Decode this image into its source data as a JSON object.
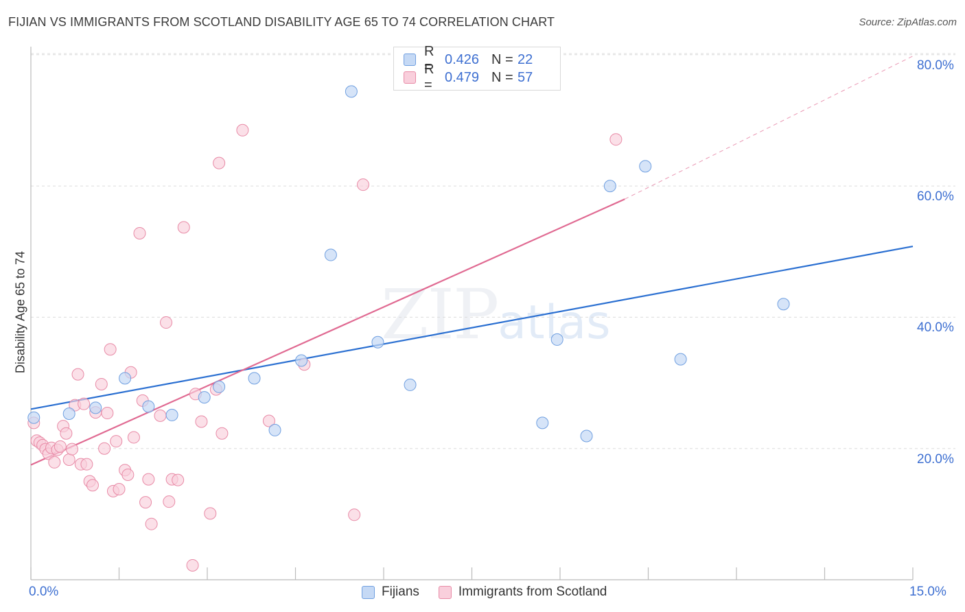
{
  "header": {
    "title": "FIJIAN VS IMMIGRANTS FROM SCOTLAND DISABILITY AGE 65 TO 74 CORRELATION CHART",
    "source": "Source: ZipAtlas.com"
  },
  "legend": {
    "series1": {
      "r_label": "R =",
      "r_value": "0.426",
      "n_label": "N =",
      "n_value": "22"
    },
    "series2": {
      "r_label": "R =",
      "r_value": "0.479",
      "n_label": "N =",
      "n_value": "57"
    }
  },
  "bottom_legend": {
    "series1": "Fijians",
    "series2": "Immigrants from Scotland"
  },
  "axes": {
    "y_title": "Disability Age 65 to 74",
    "y_ticks": [
      "20.0%",
      "40.0%",
      "60.0%",
      "80.0%"
    ],
    "x_min_label": "0.0%",
    "x_max_label": "15.0%"
  },
  "watermark": {
    "zip": "ZIP",
    "atlas": "atlas"
  },
  "colors": {
    "blue": "#6f9fe0",
    "blue_fill": "#c5d9f5",
    "blue_line": "#2a6fd1",
    "pink": "#e88aa6",
    "pink_fill": "#f9cfdc",
    "pink_line": "#e06a92",
    "grid": "#dcdcdc",
    "accent_text": "#3d6fd1"
  },
  "chart_data": {
    "type": "scatter",
    "title": "FIJIAN VS IMMIGRANTS FROM SCOTLAND DISABILITY AGE 65 TO 74 CORRELATION CHART",
    "xlabel": "",
    "ylabel": "Disability Age 65 to 74",
    "xlim": [
      0,
      15
    ],
    "ylim": [
      0,
      82
    ],
    "y_gridlines": [
      20,
      40,
      60,
      80
    ],
    "series": [
      {
        "name": "Fijians",
        "r": 0.426,
        "n": 22,
        "trend": {
          "x": [
            0,
            15
          ],
          "y": [
            26.0,
            50.8
          ]
        },
        "points": [
          [
            0.05,
            24.7
          ],
          [
            0.65,
            25.3
          ],
          [
            1.1,
            26.2
          ],
          [
            1.6,
            30.7
          ],
          [
            2.0,
            26.4
          ],
          [
            2.4,
            25.1
          ],
          [
            2.95,
            27.8
          ],
          [
            3.2,
            29.4
          ],
          [
            3.8,
            30.7
          ],
          [
            4.15,
            22.8
          ],
          [
            4.6,
            33.4
          ],
          [
            5.1,
            49.5
          ],
          [
            5.45,
            74.4
          ],
          [
            5.9,
            36.2
          ],
          [
            6.45,
            29.7
          ],
          [
            8.7,
            23.9
          ],
          [
            8.95,
            36.6
          ],
          [
            9.45,
            21.9
          ],
          [
            9.85,
            60.0
          ],
          [
            10.45,
            63.0
          ],
          [
            11.05,
            33.6
          ],
          [
            12.8,
            42.0
          ]
        ]
      },
      {
        "name": "Immigrants from Scotland",
        "r": 0.479,
        "n": 57,
        "trend": {
          "x": [
            0,
            10.1
          ],
          "y": [
            17.5,
            58.0
          ],
          "dashed_extension": {
            "x": [
              10.1,
              15
            ],
            "y": [
              58.0,
              79.8
            ]
          }
        },
        "points": [
          [
            0.05,
            23.9
          ],
          [
            0.1,
            21.2
          ],
          [
            0.15,
            20.9
          ],
          [
            0.2,
            20.5
          ],
          [
            0.25,
            19.9
          ],
          [
            0.3,
            19.2
          ],
          [
            0.35,
            20.1
          ],
          [
            0.4,
            17.9
          ],
          [
            0.45,
            19.8
          ],
          [
            0.5,
            20.3
          ],
          [
            0.55,
            23.4
          ],
          [
            0.6,
            22.3
          ],
          [
            0.65,
            18.3
          ],
          [
            0.7,
            19.9
          ],
          [
            0.75,
            26.6
          ],
          [
            0.8,
            31.3
          ],
          [
            0.85,
            17.6
          ],
          [
            0.9,
            26.8
          ],
          [
            0.95,
            17.6
          ],
          [
            1.0,
            15.0
          ],
          [
            1.05,
            14.4
          ],
          [
            1.1,
            25.5
          ],
          [
            1.2,
            29.8
          ],
          [
            1.25,
            20.0
          ],
          [
            1.3,
            25.4
          ],
          [
            1.35,
            35.1
          ],
          [
            1.4,
            13.5
          ],
          [
            1.45,
            21.1
          ],
          [
            1.5,
            13.8
          ],
          [
            1.6,
            16.7
          ],
          [
            1.65,
            16.0
          ],
          [
            1.7,
            31.6
          ],
          [
            1.75,
            21.7
          ],
          [
            1.85,
            52.8
          ],
          [
            1.9,
            27.3
          ],
          [
            1.95,
            11.8
          ],
          [
            2.0,
            15.3
          ],
          [
            2.05,
            8.5
          ],
          [
            2.2,
            25.0
          ],
          [
            2.3,
            39.2
          ],
          [
            2.35,
            11.9
          ],
          [
            2.4,
            15.3
          ],
          [
            2.5,
            15.2
          ],
          [
            2.6,
            53.7
          ],
          [
            2.8,
            28.3
          ],
          [
            2.9,
            24.1
          ],
          [
            2.75,
            2.2
          ],
          [
            3.05,
            10.1
          ],
          [
            3.15,
            29.0
          ],
          [
            3.2,
            63.5
          ],
          [
            3.25,
            22.3
          ],
          [
            3.6,
            68.5
          ],
          [
            4.05,
            24.2
          ],
          [
            4.65,
            32.8
          ],
          [
            5.5,
            9.9
          ],
          [
            5.65,
            60.2
          ],
          [
            9.95,
            67.1
          ]
        ]
      }
    ]
  }
}
